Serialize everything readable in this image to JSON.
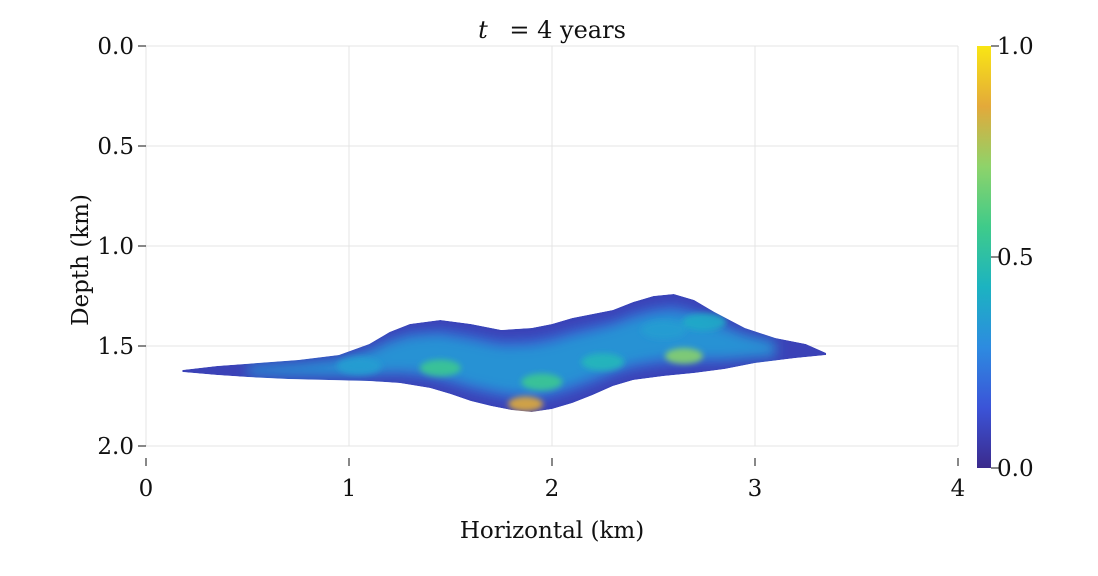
{
  "chart_data": {
    "type": "heatmap",
    "title": "t = 4 years",
    "title_var": "t",
    "title_rest": "= 4 years",
    "xlabel": "Horizontal (km)",
    "ylabel": "Depth (km)",
    "xlim": [
      0,
      4
    ],
    "ylim": [
      2.0,
      0.0
    ],
    "x_ticks": [
      0,
      1,
      2,
      3,
      4
    ],
    "x_tick_labels": [
      "0",
      "1",
      "2",
      "3",
      "4"
    ],
    "y_ticks": [
      0.0,
      0.5,
      1.0,
      1.5,
      2.0
    ],
    "y_tick_labels": [
      "0.0",
      "0.5",
      "1.0",
      "1.5",
      "2.0"
    ],
    "y_inverted": true,
    "grid": true,
    "colorbar": {
      "range": [
        0.0,
        1.0
      ],
      "ticks": [
        0.0,
        0.5,
        1.0
      ],
      "tick_labels": [
        "0.0",
        "0.5",
        "1.0"
      ],
      "colormap": "plasma-like (indigo → blue → teal → green → orange → yellow)",
      "colors": [
        "#3b2a8c",
        "#3b54d8",
        "#2d8be0",
        "#1cb3c1",
        "#3fcb8a",
        "#8ed36a",
        "#e3a93a",
        "#f9e614"
      ]
    },
    "plume": {
      "description": "CO2 saturation plume",
      "x_extent_km": [
        0.18,
        3.35
      ],
      "depth_extent_km": [
        1.23,
        1.83
      ],
      "upper_boundary": [
        [
          0.18,
          1.62
        ],
        [
          0.35,
          1.6
        ],
        [
          0.55,
          1.585
        ],
        [
          0.75,
          1.57
        ],
        [
          0.95,
          1.545
        ],
        [
          1.1,
          1.49
        ],
        [
          1.2,
          1.43
        ],
        [
          1.3,
          1.39
        ],
        [
          1.45,
          1.37
        ],
        [
          1.6,
          1.39
        ],
        [
          1.75,
          1.42
        ],
        [
          1.9,
          1.41
        ],
        [
          2.0,
          1.39
        ],
        [
          2.1,
          1.36
        ],
        [
          2.2,
          1.34
        ],
        [
          2.3,
          1.32
        ],
        [
          2.4,
          1.28
        ],
        [
          2.5,
          1.25
        ],
        [
          2.6,
          1.24
        ],
        [
          2.7,
          1.27
        ],
        [
          2.8,
          1.33
        ],
        [
          2.95,
          1.41
        ],
        [
          3.1,
          1.46
        ],
        [
          3.25,
          1.49
        ],
        [
          3.35,
          1.535
        ]
      ],
      "lower_boundary": [
        [
          3.35,
          1.545
        ],
        [
          3.2,
          1.56
        ],
        [
          3.0,
          1.585
        ],
        [
          2.85,
          1.615
        ],
        [
          2.7,
          1.635
        ],
        [
          2.55,
          1.65
        ],
        [
          2.4,
          1.67
        ],
        [
          2.3,
          1.7
        ],
        [
          2.2,
          1.745
        ],
        [
          2.1,
          1.785
        ],
        [
          2.0,
          1.815
        ],
        [
          1.9,
          1.83
        ],
        [
          1.8,
          1.82
        ],
        [
          1.7,
          1.8
        ],
        [
          1.6,
          1.775
        ],
        [
          1.5,
          1.74
        ],
        [
          1.4,
          1.71
        ],
        [
          1.25,
          1.685
        ],
        [
          1.1,
          1.675
        ],
        [
          0.9,
          1.67
        ],
        [
          0.7,
          1.665
        ],
        [
          0.5,
          1.655
        ],
        [
          0.35,
          1.645
        ],
        [
          0.18,
          1.63
        ]
      ],
      "hotspots": [
        {
          "x": 1.87,
          "depth": 1.79,
          "value": 0.85
        },
        {
          "x": 2.65,
          "depth": 1.55,
          "value": 0.7
        },
        {
          "x": 1.45,
          "depth": 1.61,
          "value": 0.55
        },
        {
          "x": 2.25,
          "depth": 1.58,
          "value": 0.45
        },
        {
          "x": 2.55,
          "depth": 1.42,
          "value": 0.35
        },
        {
          "x": 1.95,
          "depth": 1.68,
          "value": 0.55
        },
        {
          "x": 1.05,
          "depth": 1.6,
          "value": 0.35
        },
        {
          "x": 2.75,
          "depth": 1.38,
          "value": 0.4
        }
      ]
    }
  }
}
